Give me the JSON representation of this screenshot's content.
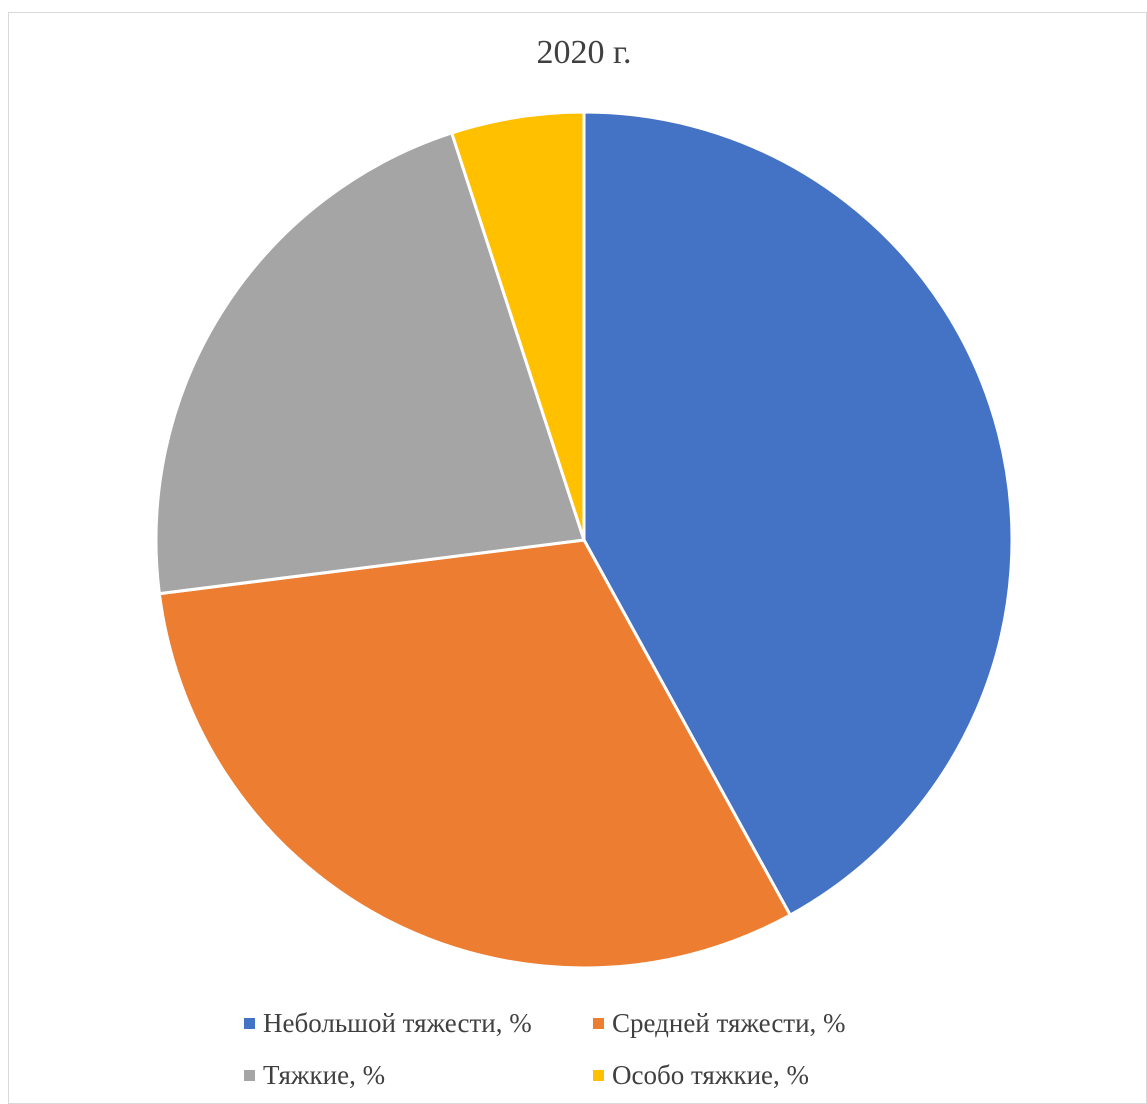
{
  "chart_data": {
    "type": "pie",
    "title": "2020 г.",
    "categories": [
      "Небольшой тяжести, %",
      "Средней тяжести, %",
      "Тяжкие, %",
      "Особо тяжкие, %"
    ],
    "values": [
      42,
      31,
      22,
      5
    ],
    "colors": [
      "#4472C4",
      "#ED7D31",
      "#A5A5A5",
      "#FFC000"
    ],
    "start_angle_deg": 0,
    "direction": "clockwise",
    "legend_position": "bottom",
    "data_labels": false
  }
}
